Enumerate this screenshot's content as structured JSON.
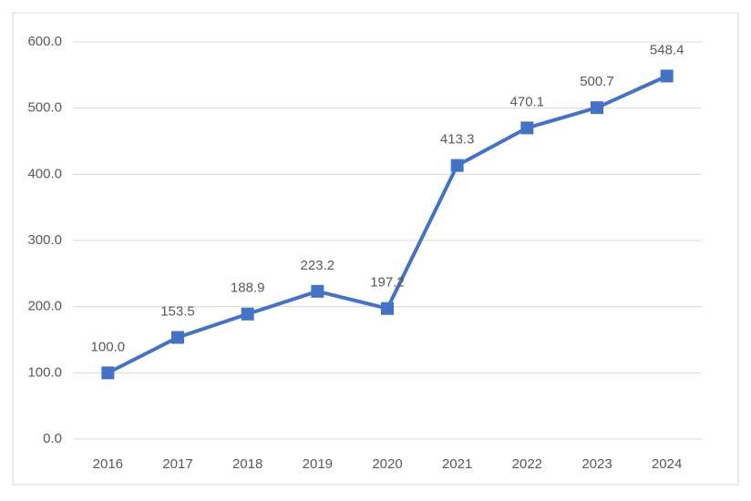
{
  "chart_data": {
    "type": "line",
    "categories": [
      "2016",
      "2017",
      "2018",
      "2019",
      "2020",
      "2021",
      "2022",
      "2023",
      "2024"
    ],
    "series": [
      {
        "color": "#4472c4",
        "values": [
          100.0,
          153.5,
          188.9,
          223.2,
          197.2,
          413.3,
          470.1,
          500.7,
          548.4
        ],
        "value_labels": [
          "100.0",
          "153.5",
          "188.9",
          "223.2",
          "197.2",
          "413.3",
          "470.1",
          "500.7",
          "548.4"
        ]
      }
    ],
    "ylim": [
      0,
      600
    ],
    "yticks": [
      {
        "value": 0,
        "label": "0.0"
      },
      {
        "value": 100,
        "label": "100.0"
      },
      {
        "value": 200,
        "label": "200.0"
      },
      {
        "value": 300,
        "label": "300.0"
      },
      {
        "value": 400,
        "label": "400.0"
      },
      {
        "value": 500,
        "label": "500.0"
      },
      {
        "value": 600,
        "label": "600.0"
      }
    ],
    "grid": true
  }
}
